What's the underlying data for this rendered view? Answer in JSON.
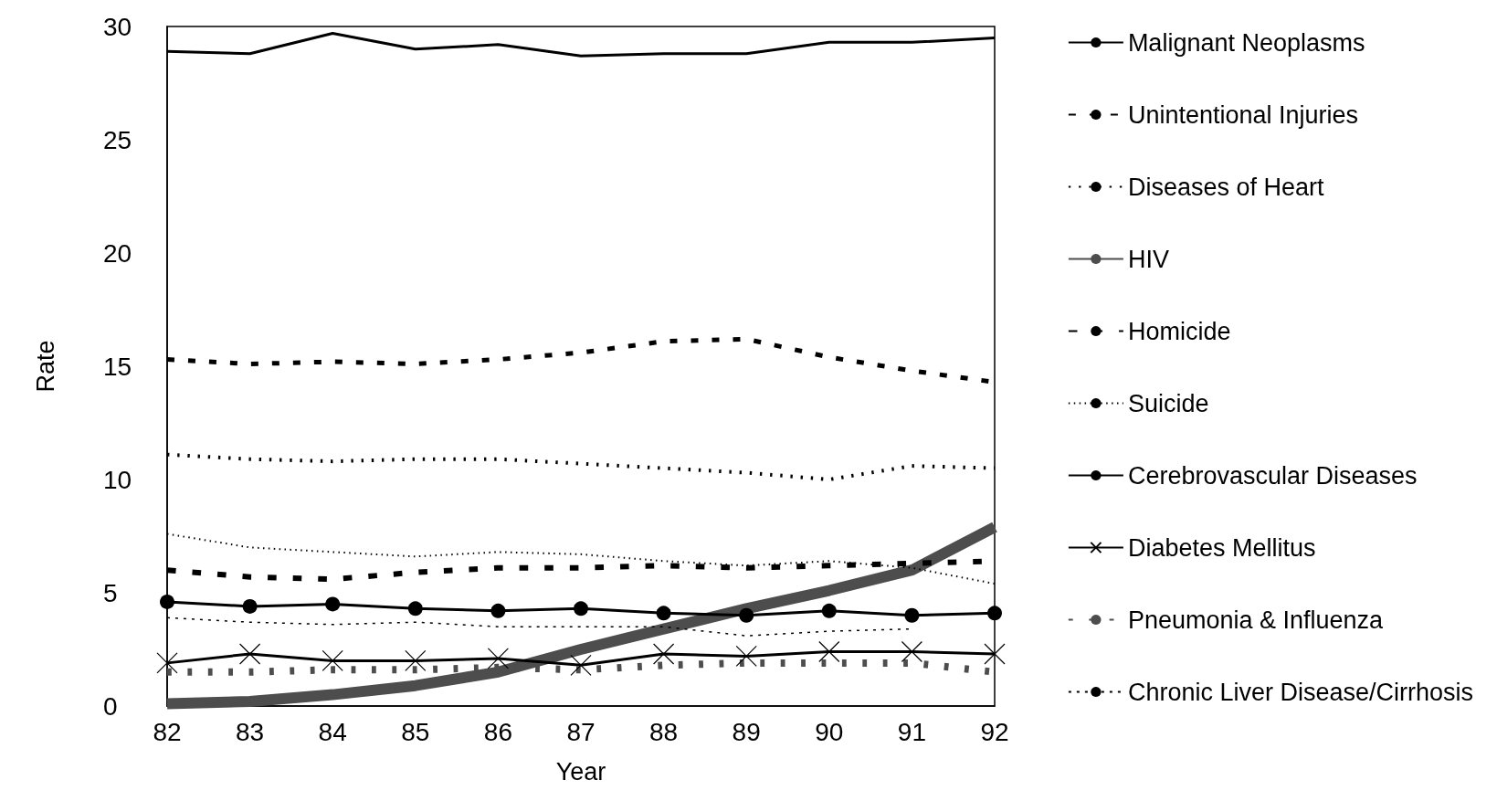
{
  "chart_data": {
    "type": "line",
    "xlabel": "Year",
    "ylabel": "Rate",
    "categories": [
      "82",
      "83",
      "84",
      "85",
      "86",
      "87",
      "88",
      "89",
      "90",
      "91",
      "92"
    ],
    "ylim": [
      0,
      30
    ],
    "yticks": [
      0,
      5,
      10,
      15,
      20,
      25,
      30
    ],
    "grid": false,
    "legend": "right",
    "series": [
      {
        "name": "Malignant Neoplasms",
        "color": "#000000",
        "line_style": "solid",
        "marker": "none",
        "values": [
          28.9,
          28.8,
          29.7,
          29.0,
          29.2,
          28.7,
          28.8,
          28.8,
          29.3,
          29.3,
          29.5
        ]
      },
      {
        "name": "Unintentional Injuries",
        "color": "#000000",
        "line_style": "dashed",
        "marker": "none",
        "values": [
          15.3,
          15.1,
          15.2,
          15.1,
          15.3,
          15.6,
          16.1,
          16.2,
          15.4,
          14.8,
          14.3
        ]
      },
      {
        "name": "Diseases of Heart",
        "color": "#000000",
        "line_style": "dotted",
        "marker": "none",
        "values": [
          11.1,
          10.9,
          10.8,
          10.9,
          10.9,
          10.7,
          10.5,
          10.3,
          10.0,
          10.6,
          10.5
        ]
      },
      {
        "name": "HIV",
        "color": "#4d4d4d",
        "line_style": "solid",
        "marker": "none",
        "values": [
          0.1,
          0.2,
          0.5,
          0.9,
          1.5,
          2.5,
          3.4,
          4.3,
          5.1,
          6.0,
          7.9
        ]
      },
      {
        "name": "Homicide",
        "color": "#000000",
        "line_style": "dashed",
        "marker": "none",
        "values": [
          6.0,
          5.7,
          5.6,
          5.9,
          6.1,
          6.1,
          6.2,
          6.1,
          6.2,
          6.3,
          6.4
        ]
      },
      {
        "name": "Suicide",
        "color": "#000000",
        "line_style": "dotted",
        "marker": "none",
        "values": [
          7.6,
          7.0,
          6.8,
          6.6,
          6.8,
          6.7,
          6.4,
          6.2,
          6.4,
          6.1,
          5.4
        ]
      },
      {
        "name": "Cerebrovascular Diseases",
        "color": "#000000",
        "line_style": "solid",
        "marker": "circle",
        "values": [
          4.6,
          4.4,
          4.5,
          4.3,
          4.2,
          4.3,
          4.1,
          4.0,
          4.2,
          4.0,
          4.1
        ]
      },
      {
        "name": "Diabetes Mellitus",
        "color": "#000000",
        "line_style": "solid",
        "marker": "cross",
        "values": [
          1.9,
          2.3,
          2.0,
          2.0,
          2.1,
          1.8,
          2.3,
          2.2,
          2.4,
          2.4,
          2.3
        ]
      },
      {
        "name": "Pneumonia & Influenza",
        "color": "#4d4d4d",
        "line_style": "dotted",
        "marker": "none",
        "values": [
          1.5,
          1.5,
          1.6,
          1.6,
          1.7,
          1.6,
          1.8,
          1.9,
          1.9,
          1.9,
          1.5
        ]
      },
      {
        "name": "Chronic Liver Disease/Cirrhosis",
        "color": "#000000",
        "line_style": "dashed",
        "marker": "none",
        "values": [
          3.9,
          3.7,
          3.6,
          3.7,
          3.5,
          3.5,
          3.5,
          3.1,
          3.3,
          3.4,
          null
        ]
      }
    ]
  }
}
